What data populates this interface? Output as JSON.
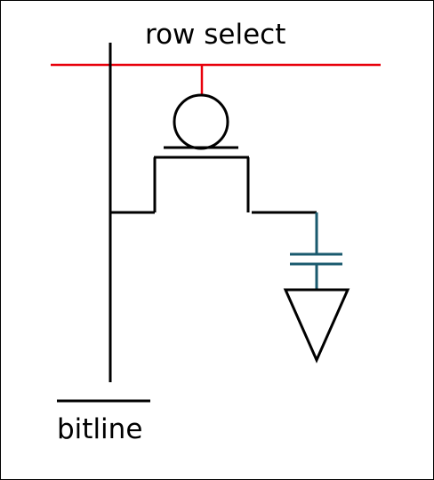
{
  "labels": {
    "row_select": "row select",
    "bitline": "bitline"
  },
  "colors": {
    "row_select_line": "#e8000b",
    "wire": "#000000",
    "capacitor": "#1a5a6e",
    "ground": "#000000"
  },
  "components": {
    "transistor": "mosfet-icon",
    "capacitor": "capacitor-icon",
    "ground": "ground-icon"
  }
}
